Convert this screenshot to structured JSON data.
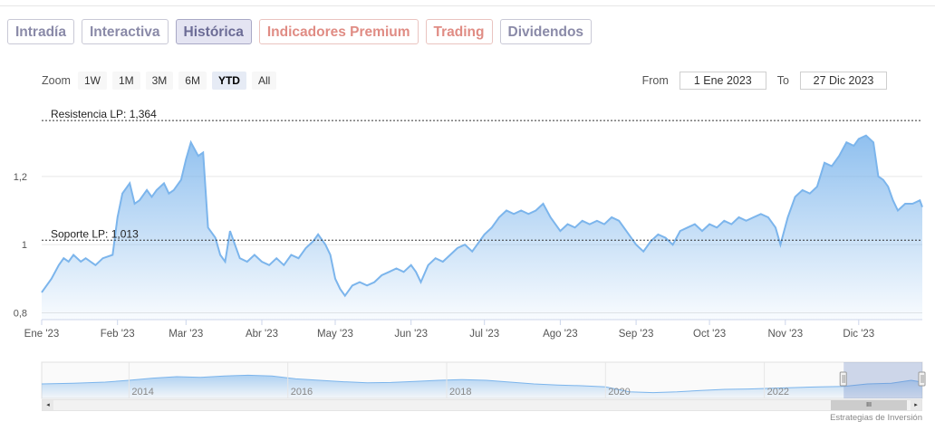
{
  "tabs": [
    {
      "label": "Intradía",
      "state": "normal"
    },
    {
      "label": "Interactiva",
      "state": "normal"
    },
    {
      "label": "Histórica",
      "state": "active"
    },
    {
      "label": "Indicadores Premium",
      "state": "premium"
    },
    {
      "label": "Trading",
      "state": "premium"
    },
    {
      "label": "Dividendos",
      "state": "normal"
    }
  ],
  "zoom": {
    "label": "Zoom",
    "buttons": [
      "1W",
      "1M",
      "3M",
      "6M",
      "YTD",
      "All"
    ],
    "selected": "YTD"
  },
  "range": {
    "from_label": "From",
    "from_value": "1 Ene 2023",
    "to_label": "To",
    "to_value": "27 Dic 2023"
  },
  "chart_data": {
    "type": "area",
    "title": "",
    "xlabel": "",
    "ylabel": "",
    "x_range": [
      "2023-01-01",
      "2023-12-27"
    ],
    "ylim": [
      0.78,
      1.42
    ],
    "yticks": [
      0.8,
      1,
      1.2
    ],
    "ytick_labels": [
      "0,8",
      "1",
      "1,2"
    ],
    "xtick_dates": [
      "2023-01-01",
      "2023-02-01",
      "2023-03-01",
      "2023-04-01",
      "2023-05-01",
      "2023-06-01",
      "2023-07-01",
      "2023-08-01",
      "2023-09-01",
      "2023-10-01",
      "2023-11-01",
      "2023-12-01"
    ],
    "xtick_labels": [
      "Ene '23",
      "Feb '23",
      "Mar '23",
      "Abr '23",
      "May '23",
      "Jun '23",
      "Jul '23",
      "Ago '23",
      "Sep '23",
      "Oct '23",
      "Nov '23",
      "Dic '23"
    ],
    "grid": true,
    "legend": "none",
    "color": "#7cb5ec",
    "series": [
      {
        "points": [
          [
            "2023-01-01",
            0.86
          ],
          [
            "2023-01-05",
            0.9
          ],
          [
            "2023-01-08",
            0.94
          ],
          [
            "2023-01-10",
            0.96
          ],
          [
            "2023-01-12",
            0.95
          ],
          [
            "2023-01-14",
            0.97
          ],
          [
            "2023-01-17",
            0.95
          ],
          [
            "2023-01-19",
            0.96
          ],
          [
            "2023-01-23",
            0.94
          ],
          [
            "2023-01-26",
            0.96
          ],
          [
            "2023-01-30",
            0.97
          ],
          [
            "2023-02-01",
            1.08
          ],
          [
            "2023-02-03",
            1.15
          ],
          [
            "2023-02-06",
            1.18
          ],
          [
            "2023-02-08",
            1.12
          ],
          [
            "2023-02-10",
            1.13
          ],
          [
            "2023-02-13",
            1.16
          ],
          [
            "2023-02-15",
            1.14
          ],
          [
            "2023-02-17",
            1.16
          ],
          [
            "2023-02-20",
            1.18
          ],
          [
            "2023-02-22",
            1.15
          ],
          [
            "2023-02-24",
            1.16
          ],
          [
            "2023-02-27",
            1.19
          ],
          [
            "2023-03-01",
            1.25
          ],
          [
            "2023-03-03",
            1.3
          ],
          [
            "2023-03-06",
            1.26
          ],
          [
            "2023-03-08",
            1.27
          ],
          [
            "2023-03-10",
            1.05
          ],
          [
            "2023-03-13",
            1.02
          ],
          [
            "2023-03-15",
            0.97
          ],
          [
            "2023-03-17",
            0.95
          ],
          [
            "2023-03-19",
            1.04
          ],
          [
            "2023-03-21",
            1.0
          ],
          [
            "2023-03-23",
            0.96
          ],
          [
            "2023-03-26",
            0.95
          ],
          [
            "2023-03-29",
            0.97
          ],
          [
            "2023-04-01",
            0.95
          ],
          [
            "2023-04-04",
            0.94
          ],
          [
            "2023-04-07",
            0.96
          ],
          [
            "2023-04-10",
            0.94
          ],
          [
            "2023-04-13",
            0.97
          ],
          [
            "2023-04-16",
            0.96
          ],
          [
            "2023-04-19",
            0.99
          ],
          [
            "2023-04-22",
            1.01
          ],
          [
            "2023-04-24",
            1.03
          ],
          [
            "2023-04-27",
            1.0
          ],
          [
            "2023-04-29",
            0.97
          ],
          [
            "2023-05-01",
            0.9
          ],
          [
            "2023-05-03",
            0.87
          ],
          [
            "2023-05-05",
            0.85
          ],
          [
            "2023-05-08",
            0.88
          ],
          [
            "2023-05-11",
            0.89
          ],
          [
            "2023-05-14",
            0.88
          ],
          [
            "2023-05-17",
            0.89
          ],
          [
            "2023-05-20",
            0.91
          ],
          [
            "2023-05-23",
            0.92
          ],
          [
            "2023-05-26",
            0.93
          ],
          [
            "2023-05-29",
            0.92
          ],
          [
            "2023-06-01",
            0.94
          ],
          [
            "2023-06-03",
            0.92
          ],
          [
            "2023-06-05",
            0.89
          ],
          [
            "2023-06-08",
            0.94
          ],
          [
            "2023-06-11",
            0.96
          ],
          [
            "2023-06-14",
            0.95
          ],
          [
            "2023-06-17",
            0.97
          ],
          [
            "2023-06-20",
            0.99
          ],
          [
            "2023-06-23",
            1.0
          ],
          [
            "2023-06-26",
            0.98
          ],
          [
            "2023-06-29",
            1.01
          ],
          [
            "2023-07-01",
            1.03
          ],
          [
            "2023-07-04",
            1.05
          ],
          [
            "2023-07-07",
            1.08
          ],
          [
            "2023-07-10",
            1.1
          ],
          [
            "2023-07-13",
            1.09
          ],
          [
            "2023-07-16",
            1.1
          ],
          [
            "2023-07-19",
            1.09
          ],
          [
            "2023-07-22",
            1.1
          ],
          [
            "2023-07-25",
            1.12
          ],
          [
            "2023-07-28",
            1.08
          ],
          [
            "2023-08-01",
            1.04
          ],
          [
            "2023-08-04",
            1.06
          ],
          [
            "2023-08-07",
            1.05
          ],
          [
            "2023-08-10",
            1.07
          ],
          [
            "2023-08-13",
            1.06
          ],
          [
            "2023-08-16",
            1.07
          ],
          [
            "2023-08-19",
            1.06
          ],
          [
            "2023-08-22",
            1.08
          ],
          [
            "2023-08-25",
            1.07
          ],
          [
            "2023-08-28",
            1.04
          ],
          [
            "2023-09-01",
            1.0
          ],
          [
            "2023-09-04",
            0.98
          ],
          [
            "2023-09-07",
            1.01
          ],
          [
            "2023-09-10",
            1.03
          ],
          [
            "2023-09-13",
            1.02
          ],
          [
            "2023-09-16",
            1.0
          ],
          [
            "2023-09-19",
            1.04
          ],
          [
            "2023-09-22",
            1.05
          ],
          [
            "2023-09-25",
            1.06
          ],
          [
            "2023-09-28",
            1.04
          ],
          [
            "2023-10-01",
            1.06
          ],
          [
            "2023-10-04",
            1.05
          ],
          [
            "2023-10-07",
            1.07
          ],
          [
            "2023-10-10",
            1.06
          ],
          [
            "2023-10-13",
            1.08
          ],
          [
            "2023-10-16",
            1.07
          ],
          [
            "2023-10-19",
            1.08
          ],
          [
            "2023-10-22",
            1.09
          ],
          [
            "2023-10-25",
            1.08
          ],
          [
            "2023-10-28",
            1.05
          ],
          [
            "2023-10-30",
            1.0
          ],
          [
            "2023-11-02",
            1.08
          ],
          [
            "2023-11-05",
            1.14
          ],
          [
            "2023-11-08",
            1.16
          ],
          [
            "2023-11-11",
            1.15
          ],
          [
            "2023-11-14",
            1.17
          ],
          [
            "2023-11-17",
            1.24
          ],
          [
            "2023-11-20",
            1.23
          ],
          [
            "2023-11-23",
            1.26
          ],
          [
            "2023-11-26",
            1.3
          ],
          [
            "2023-11-29",
            1.29
          ],
          [
            "2023-12-01",
            1.31
          ],
          [
            "2023-12-04",
            1.32
          ],
          [
            "2023-12-07",
            1.3
          ],
          [
            "2023-12-09",
            1.2
          ],
          [
            "2023-12-11",
            1.19
          ],
          [
            "2023-12-13",
            1.17
          ],
          [
            "2023-12-15",
            1.13
          ],
          [
            "2023-12-17",
            1.1
          ],
          [
            "2023-12-20",
            1.12
          ],
          [
            "2023-12-23",
            1.12
          ],
          [
            "2023-12-26",
            1.13
          ],
          [
            "2023-12-27",
            1.11
          ]
        ]
      }
    ],
    "annotations": [
      {
        "label": "Resistencia LP: 1,364",
        "value": 1.364
      },
      {
        "label": "Soporte LP: 1,013",
        "value": 1.013
      }
    ],
    "navigator": {
      "x_range": [
        2012.9,
        2023.99
      ],
      "tick_labels": [
        "2014",
        "2016",
        "2018",
        "2020",
        "2022"
      ],
      "tick_years": [
        2014,
        2016,
        2018,
        2020,
        2022
      ],
      "y_range": [
        0.6,
        1.6
      ],
      "points": [
        [
          2012.9,
          1.0
        ],
        [
          2013.3,
          1.02
        ],
        [
          2013.7,
          1.05
        ],
        [
          2014.0,
          1.1
        ],
        [
          2014.3,
          1.16
        ],
        [
          2014.6,
          1.2
        ],
        [
          2014.9,
          1.18
        ],
        [
          2015.2,
          1.22
        ],
        [
          2015.5,
          1.24
        ],
        [
          2015.8,
          1.22
        ],
        [
          2016.1,
          1.14
        ],
        [
          2016.4,
          1.1
        ],
        [
          2016.7,
          1.06
        ],
        [
          2017.0,
          1.03
        ],
        [
          2017.3,
          1.04
        ],
        [
          2017.6,
          1.07
        ],
        [
          2017.9,
          1.1
        ],
        [
          2018.2,
          1.12
        ],
        [
          2018.5,
          1.1
        ],
        [
          2018.8,
          1.05
        ],
        [
          2019.1,
          1.0
        ],
        [
          2019.4,
          0.97
        ],
        [
          2019.7,
          0.95
        ],
        [
          2020.0,
          0.92
        ],
        [
          2020.3,
          0.78
        ],
        [
          2020.6,
          0.76
        ],
        [
          2020.9,
          0.78
        ],
        [
          2021.2,
          0.82
        ],
        [
          2021.5,
          0.85
        ],
        [
          2021.8,
          0.86
        ],
        [
          2022.1,
          0.88
        ],
        [
          2022.4,
          0.9
        ],
        [
          2022.7,
          0.92
        ],
        [
          2023.0,
          0.93
        ],
        [
          2023.3,
          1.0
        ],
        [
          2023.6,
          1.02
        ],
        [
          2023.85,
          1.1
        ],
        [
          2023.99,
          1.05
        ]
      ]
    }
  },
  "scrollbar": {
    "left_arrow": "◂",
    "right_arrow": "▸",
    "thumb": "III"
  },
  "credit": "Estrategias de Inversión"
}
